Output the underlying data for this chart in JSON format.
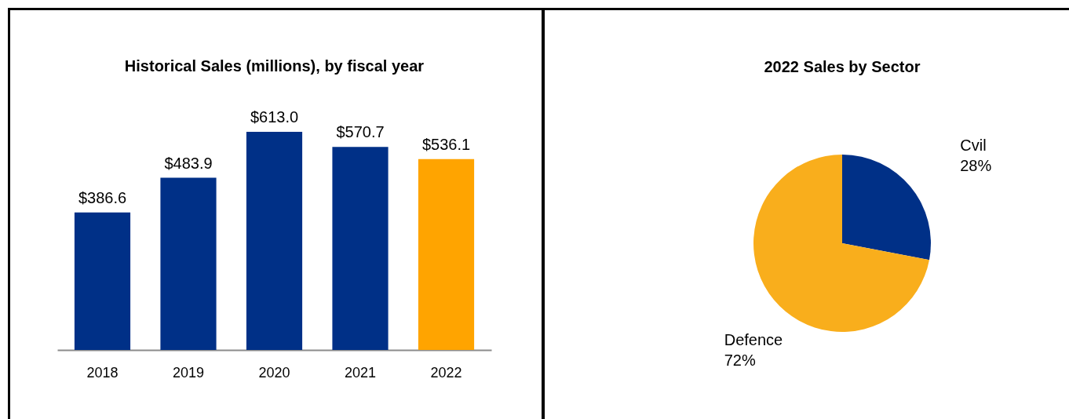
{
  "chart_data": [
    {
      "type": "bar",
      "title": "Historical Sales (millions), by fiscal year",
      "categories": [
        "2018",
        "2019",
        "2020",
        "2021",
        "2022"
      ],
      "values": [
        386.6,
        483.9,
        613.0,
        570.7,
        536.1
      ],
      "colors": [
        "#003087",
        "#003087",
        "#003087",
        "#003087",
        "#ffa400"
      ],
      "value_labels": [
        "$386.6",
        "$483.9",
        "$613.0",
        "$570.7",
        "$536.1"
      ]
    },
    {
      "type": "pie",
      "title": "2022 Sales by Sector",
      "categories": [
        "Cvil",
        "Defence"
      ],
      "values": [
        28,
        72
      ],
      "colors": [
        "#003087",
        "#f9ae1c"
      ],
      "value_labels": [
        "28%",
        "72%"
      ]
    }
  ]
}
